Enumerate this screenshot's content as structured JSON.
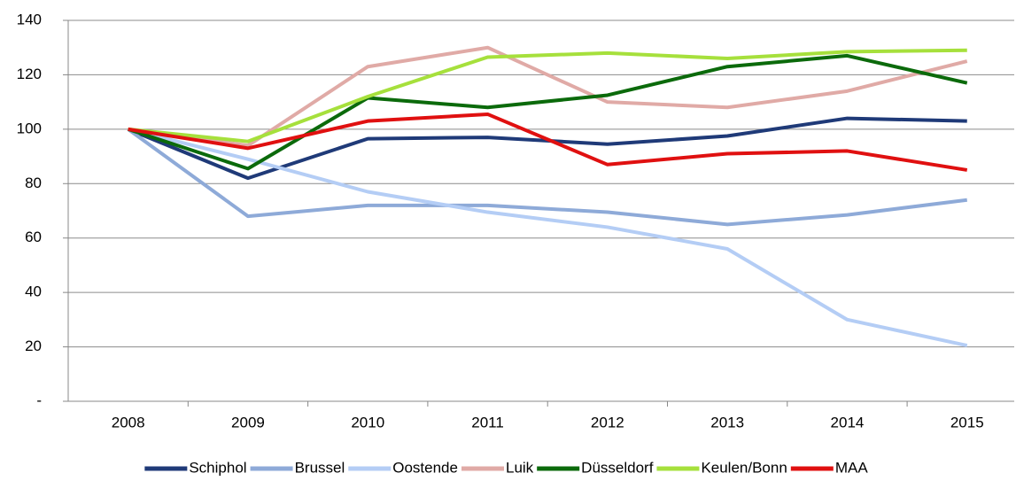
{
  "chart_data": {
    "type": "line",
    "categories": [
      "2008",
      "2009",
      "2010",
      "2011",
      "2012",
      "2013",
      "2014",
      "2015"
    ],
    "series": [
      {
        "name": "Schiphol",
        "color": "#1f3a78",
        "values": [
          100,
          82,
          96.5,
          97,
          94.5,
          97.5,
          104,
          103
        ]
      },
      {
        "name": "Brussel",
        "color": "#8eaad8",
        "values": [
          100,
          68,
          72,
          72,
          69.5,
          65,
          68.5,
          74
        ]
      },
      {
        "name": "Oostende",
        "color": "#b4cdf5",
        "values": [
          100,
          89,
          77,
          69.5,
          64,
          56,
          30,
          20.5
        ]
      },
      {
        "name": "Luik",
        "color": "#e0aaa6",
        "values": [
          100,
          94,
          123,
          130,
          110,
          108,
          114,
          125
        ]
      },
      {
        "name": "Düsseldorf",
        "color": "#0b6a0b",
        "values": [
          100,
          85.5,
          111.5,
          108,
          112.5,
          123,
          127,
          117
        ]
      },
      {
        "name": "Keulen/Bonn",
        "color": "#a6e03c",
        "values": [
          100,
          95.5,
          112,
          126.5,
          128,
          126,
          128.5,
          129
        ]
      },
      {
        "name": "MAA",
        "color": "#e01010",
        "values": [
          100,
          93,
          103,
          105.5,
          87,
          91,
          92,
          85
        ]
      }
    ],
    "ylim": [
      0,
      140
    ],
    "yticks": [
      {
        "value": 0,
        "label": "-"
      },
      20,
      40,
      60,
      80,
      100,
      120,
      140
    ],
    "grid": true,
    "legend": "bottom"
  }
}
